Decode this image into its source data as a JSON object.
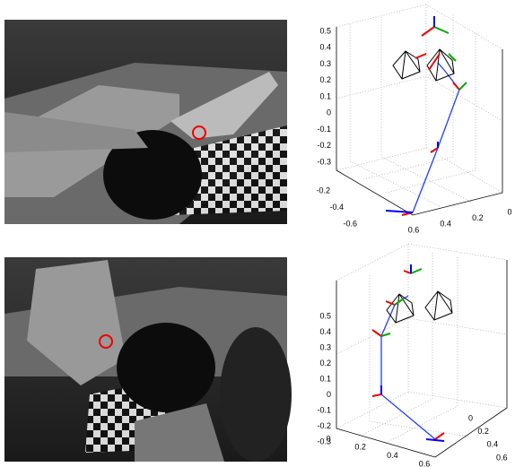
{
  "panels": [
    {
      "plot": {
        "zticks": [
          0.5,
          0.4,
          0.3,
          0.2,
          0.1,
          0,
          -0.1,
          -0.2,
          -0.3
        ],
        "xticks": [
          -0.2,
          -0.4,
          -0.6
        ],
        "yticks": [
          0.6,
          0.4,
          0.2,
          0
        ]
      }
    },
    {
      "plot": {
        "zticks": [
          0.5,
          0.4,
          0.3,
          0.2,
          0.1,
          0,
          -0.1,
          -0.2,
          -0.3
        ],
        "xticks": [
          0,
          0.2,
          0.4,
          0.6
        ],
        "yticks": [
          0,
          0.2,
          0.4,
          0.6
        ]
      }
    }
  ]
}
